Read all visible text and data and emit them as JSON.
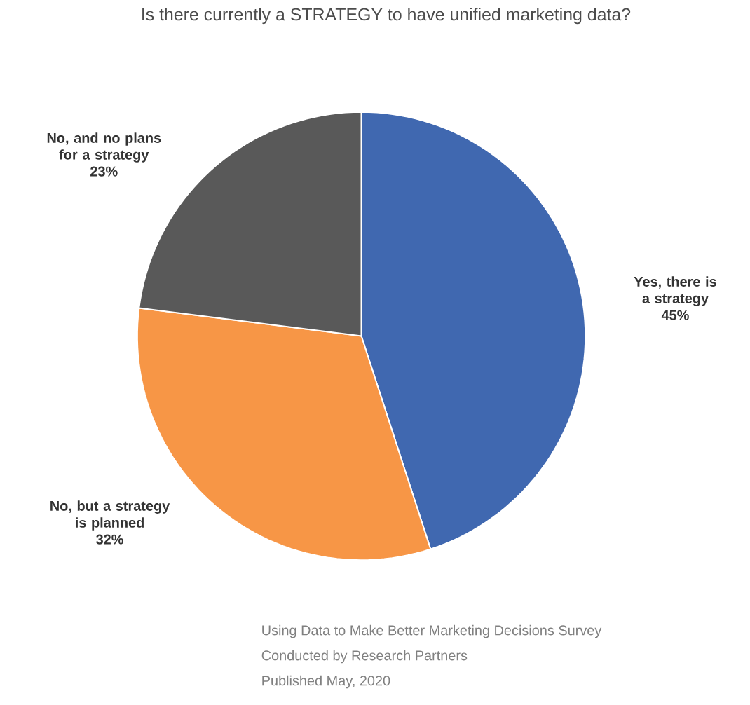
{
  "chart_data": {
    "type": "pie",
    "title": "Is there currently a STRATEGY to have unified marketing data?",
    "categories": [
      "Yes, there is a strategy",
      "No, but a strategy is planned",
      "No, and no plans for a strategy"
    ],
    "values": [
      45,
      32,
      23
    ],
    "value_labels": [
      "45%",
      "32%",
      "23%"
    ],
    "colors": [
      "#4068b0",
      "#f79646",
      "#595959"
    ],
    "annotations": [
      "Using Data to Make Better Marketing Decisions Survey",
      "Conducted by Research Partners",
      "Published May, 2020"
    ]
  }
}
